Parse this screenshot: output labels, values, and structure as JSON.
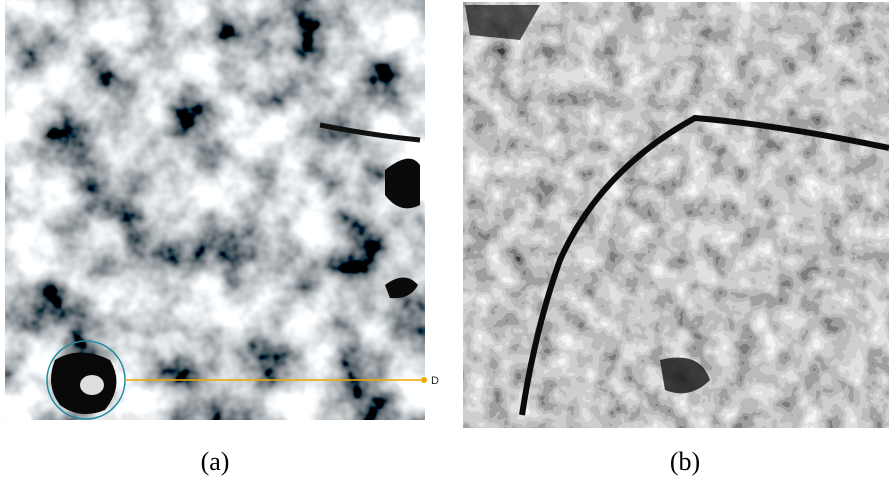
{
  "panels": [
    {
      "label": "(a)",
      "annotation": "D"
    },
    {
      "label": "(b)"
    }
  ]
}
